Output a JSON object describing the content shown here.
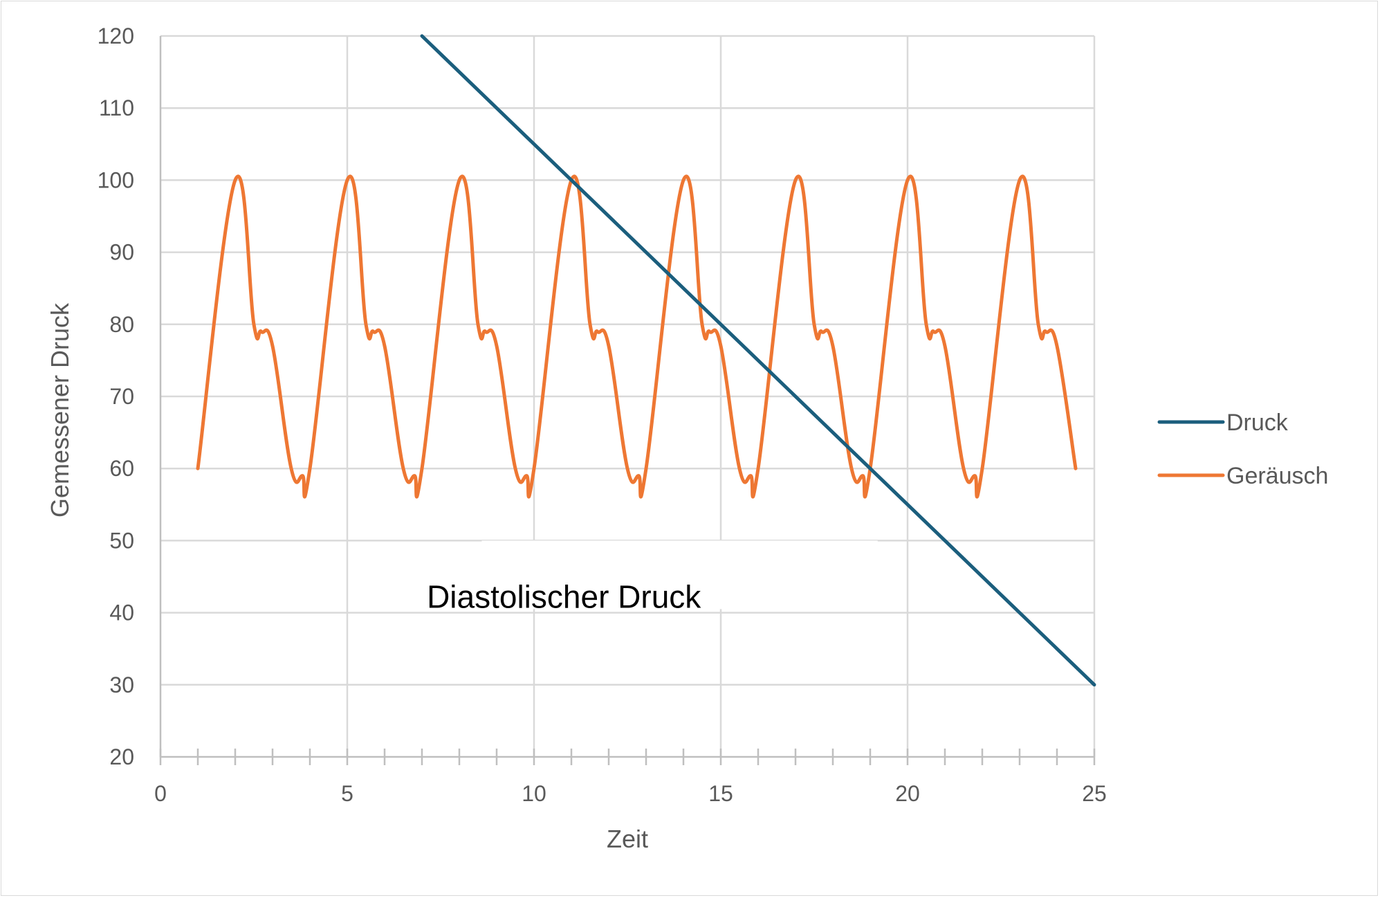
{
  "chart_data": {
    "type": "line",
    "xlabel": "Zeit",
    "ylabel": "Gemessener Druck",
    "xlim": [
      0,
      25
    ],
    "ylim": [
      20,
      120
    ],
    "x_ticks": [
      "0",
      "5",
      "10",
      "15",
      "20",
      "25"
    ],
    "y_ticks": [
      "20",
      "30",
      "40",
      "50",
      "60",
      "70",
      "80",
      "90",
      "100",
      "110",
      "120"
    ],
    "grid": true,
    "legend_position": "right",
    "annotation": "Diastolischer Druck",
    "series": [
      {
        "name": "Druck",
        "color": "#1b5e7d",
        "x": [
          7,
          25
        ],
        "y": [
          120,
          30
        ]
      },
      {
        "name": "Geräusch",
        "color": "#ee7733",
        "x": [
          1,
          2,
          2.5,
          2.7,
          3,
          3.5,
          3.8,
          4,
          5,
          5.5,
          5.7,
          6,
          6.5,
          6.8,
          7,
          8,
          8.5,
          8.7,
          9,
          9.5,
          9.8,
          10,
          11,
          11.5,
          11.7,
          12,
          12.5,
          12.8,
          13,
          14,
          14.5,
          14.7,
          15,
          15.5,
          15.8,
          16,
          17,
          17.5,
          17.7,
          18,
          18.5,
          18.8,
          19,
          20,
          20.5,
          20.7,
          21,
          21.5,
          21.8,
          22,
          23,
          23.5,
          23.7,
          24,
          24.5
        ],
        "y": [
          60,
          100,
          80,
          79,
          77,
          60,
          59,
          60,
          100,
          80,
          79,
          77,
          60,
          59,
          60,
          100,
          80,
          79,
          77,
          60,
          59,
          60,
          100,
          80,
          79,
          77,
          60,
          59,
          60,
          100,
          80,
          79,
          77,
          60,
          59,
          60,
          100,
          80,
          79,
          77,
          60,
          59,
          60,
          100,
          80,
          79,
          77,
          60,
          59,
          60,
          100,
          80,
          79,
          77,
          60
        ]
      }
    ]
  }
}
